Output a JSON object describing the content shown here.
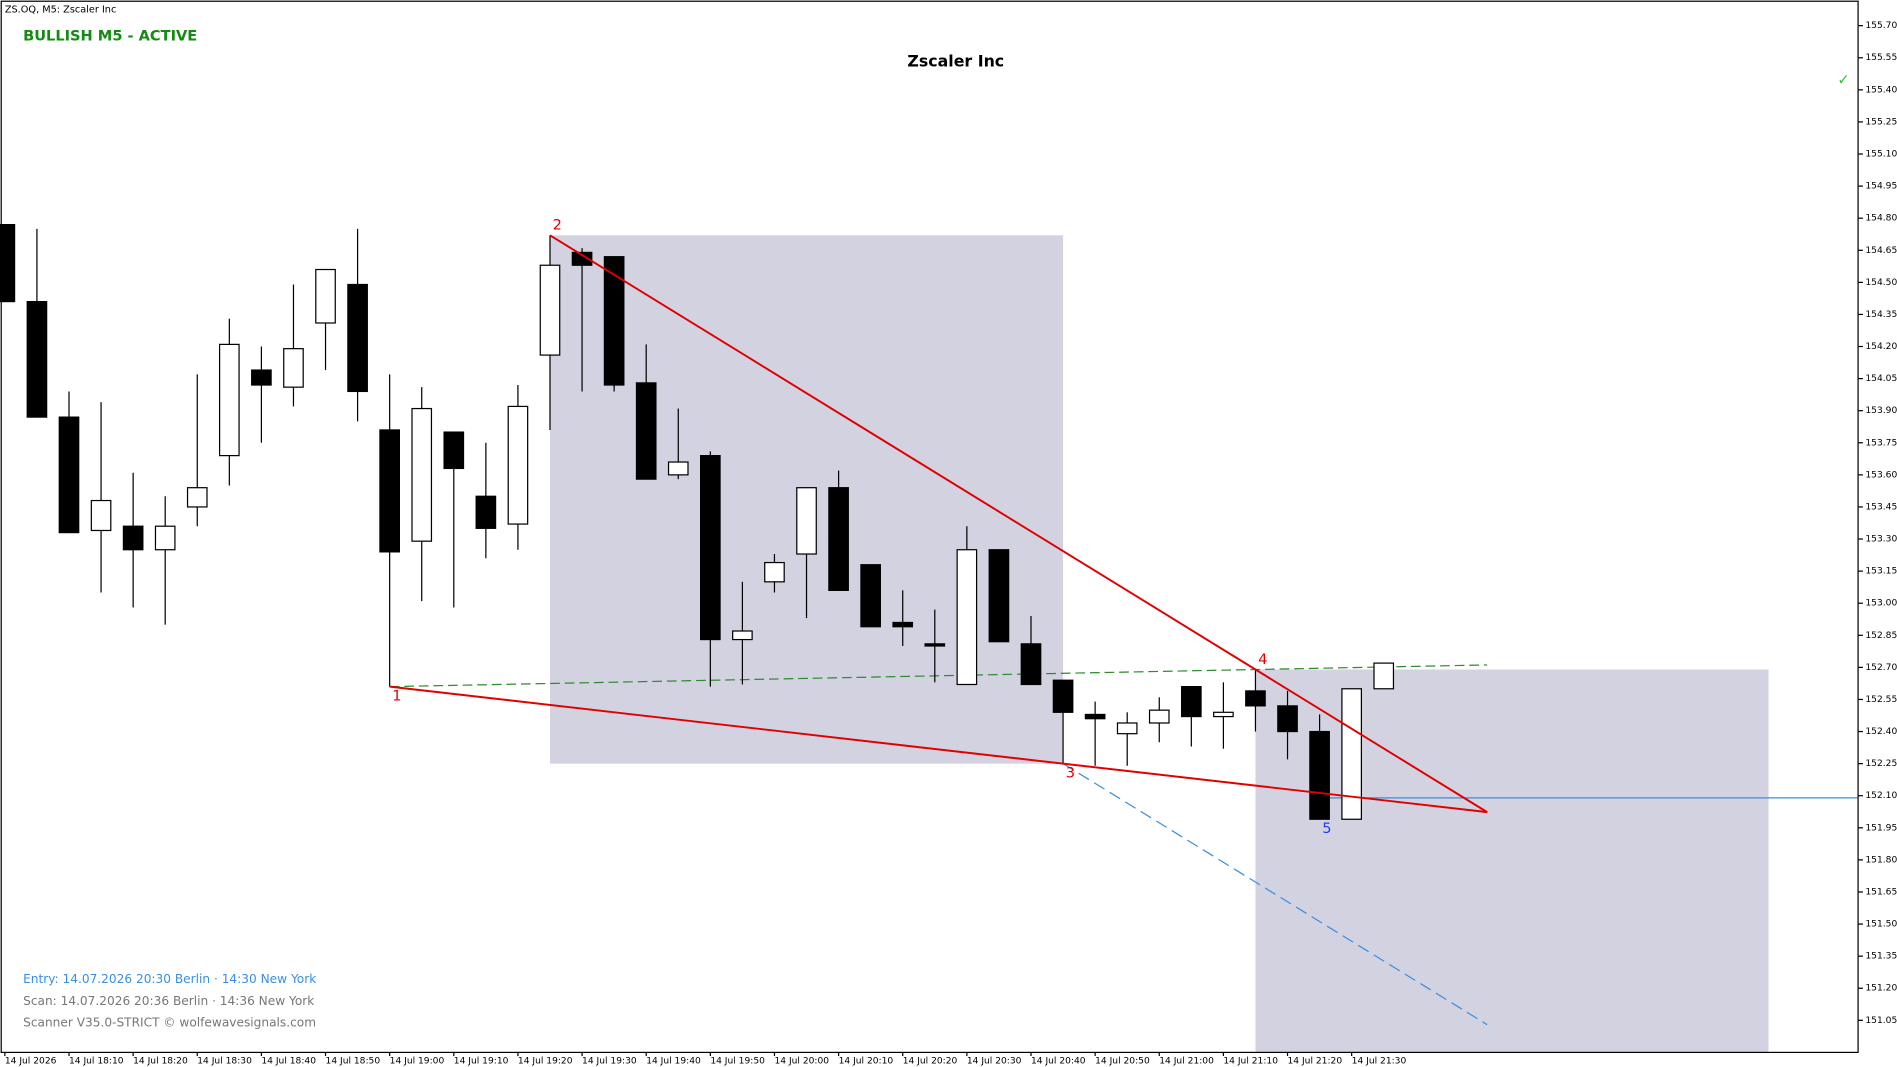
{
  "chart_data": {
    "type": "candlestick",
    "symbol_label": "ZS.OQ, M5:  Zscaler Inc",
    "status": "BULLISH M5 - ACTIVE",
    "title": "Zscaler Inc",
    "check": "✓",
    "info_lines": [
      "Entry: 14.07.2026  20:30 Berlin · 14:30 New York",
      "Scan:  14.07.2026  20:36 Berlin · 14:36 New York",
      "Scanner V35.0-STRICT   © wolfewavesignals.com"
    ],
    "x_labels": [
      "14 Jul 2026",
      "14 Jul 18:10",
      "14 Jul 18:20",
      "14 Jul 18:30",
      "14 Jul 18:40",
      "14 Jul 18:50",
      "14 Jul 19:00",
      "14 Jul 19:10",
      "14 Jul 19:20",
      "14 Jul 19:30",
      "14 Jul 19:40",
      "14 Jul 19:50",
      "14 Jul 20:00",
      "14 Jul 20:10",
      "14 Jul 20:20",
      "14 Jul 20:30",
      "14 Jul 20:40",
      "14 Jul 20:50",
      "14 Jul 21:00",
      "14 Jul 21:10",
      "14 Jul 21:20",
      "14 Jul 21:30"
    ],
    "candles": {
      "open": [
        154.77,
        154.41,
        153.87,
        153.34,
        153.36,
        153.25,
        153.45,
        153.69,
        154.09,
        154.01,
        154.31,
        154.49,
        153.81,
        153.29,
        153.8,
        153.5,
        153.37,
        154.16,
        154.64,
        154.62,
        154.03,
        153.6,
        153.69,
        152.83,
        153.1,
        153.23,
        153.54,
        153.18,
        152.91,
        152.81,
        152.62,
        153.25,
        152.81,
        152.64,
        152.48,
        152.39,
        152.44,
        152.61,
        152.47,
        152.59,
        152.52,
        152.4,
        151.99,
        152.6
      ],
      "high": [
        154.77,
        154.75,
        153.99,
        153.94,
        153.61,
        153.5,
        154.07,
        154.33,
        154.2,
        154.49,
        154.56,
        154.75,
        154.07,
        154.01,
        153.8,
        153.75,
        154.02,
        154.72,
        154.66,
        154.62,
        154.21,
        153.91,
        153.71,
        153.1,
        153.23,
        153.54,
        153.62,
        153.18,
        153.06,
        152.97,
        153.36,
        153.25,
        152.94,
        152.64,
        152.54,
        152.49,
        152.56,
        152.61,
        152.63,
        152.69,
        152.59,
        152.48,
        152.6,
        152.72
      ],
      "low": [
        154.41,
        153.87,
        153.33,
        153.05,
        152.98,
        152.9,
        153.36,
        153.55,
        153.75,
        153.92,
        154.09,
        153.85,
        152.61,
        153.01,
        152.98,
        153.21,
        153.25,
        153.81,
        153.99,
        153.99,
        153.58,
        153.58,
        152.61,
        152.62,
        153.05,
        152.93,
        153.06,
        152.89,
        152.8,
        152.63,
        152.62,
        152.82,
        152.62,
        152.25,
        152.24,
        152.24,
        152.35,
        152.33,
        152.32,
        152.4,
        152.27,
        151.99,
        151.99,
        152.6
      ],
      "close": [
        154.41,
        153.87,
        153.33,
        153.48,
        153.25,
        153.36,
        153.54,
        154.21,
        154.02,
        154.19,
        154.56,
        153.99,
        153.24,
        153.91,
        153.63,
        153.35,
        153.92,
        154.58,
        154.58,
        154.02,
        153.58,
        153.66,
        152.83,
        152.87,
        153.19,
        153.54,
        153.06,
        152.89,
        152.89,
        152.8,
        153.25,
        152.82,
        152.62,
        152.49,
        152.46,
        152.44,
        152.5,
        152.47,
        152.49,
        152.52,
        152.4,
        151.99,
        152.6,
        152.72
      ]
    },
    "points": [
      {
        "label": "1",
        "index": 12,
        "price": 152.61,
        "color": "#e00000"
      },
      {
        "label": "2",
        "index": 17,
        "price": 154.72,
        "color": "#e00000"
      },
      {
        "label": "3",
        "index": 33,
        "price": 152.25,
        "color": "#e00000"
      },
      {
        "label": "4",
        "index": 39,
        "price": 152.69,
        "color": "#e00000"
      },
      {
        "label": "5",
        "index": 41,
        "price": 151.99,
        "color": "#1e3cff"
      }
    ],
    "entry_level": 152.09,
    "ylim": [
      150.9,
      155.82
    ],
    "yticks": [
      {
        "value": 155.7,
        "label": "155.70"
      },
      155.55,
      {
        "value": 155.4,
        "label": "155.40"
      },
      155.25,
      {
        "value": 155.1,
        "label": "155.10"
      },
      154.95,
      {
        "value": 154.8,
        "label": "154.80"
      },
      154.65,
      {
        "value": 154.5,
        "label": "154.50"
      },
      154.35,
      {
        "value": 154.2,
        "label": "154.20"
      },
      154.05,
      {
        "value": 153.9,
        "label": "153.90"
      },
      153.75,
      {
        "value": 153.6,
        "label": "153.60"
      },
      153.45,
      {
        "value": 153.3,
        "label": "153.30"
      },
      153.15,
      {
        "value": 153,
        "label": "153.00"
      },
      152.85,
      {
        "value": 152.7,
        "label": "152.70"
      },
      152.55,
      {
        "value": 152.4,
        "label": "152.40"
      },
      152.25,
      {
        "value": 152.1,
        "label": "152.10"
      },
      151.95,
      {
        "value": 151.8,
        "label": "151.80"
      },
      151.65,
      {
        "value": 151.5,
        "label": "151.50"
      },
      151.35,
      {
        "value": 151.2,
        "label": "151.20"
      },
      151.05
    ]
  }
}
